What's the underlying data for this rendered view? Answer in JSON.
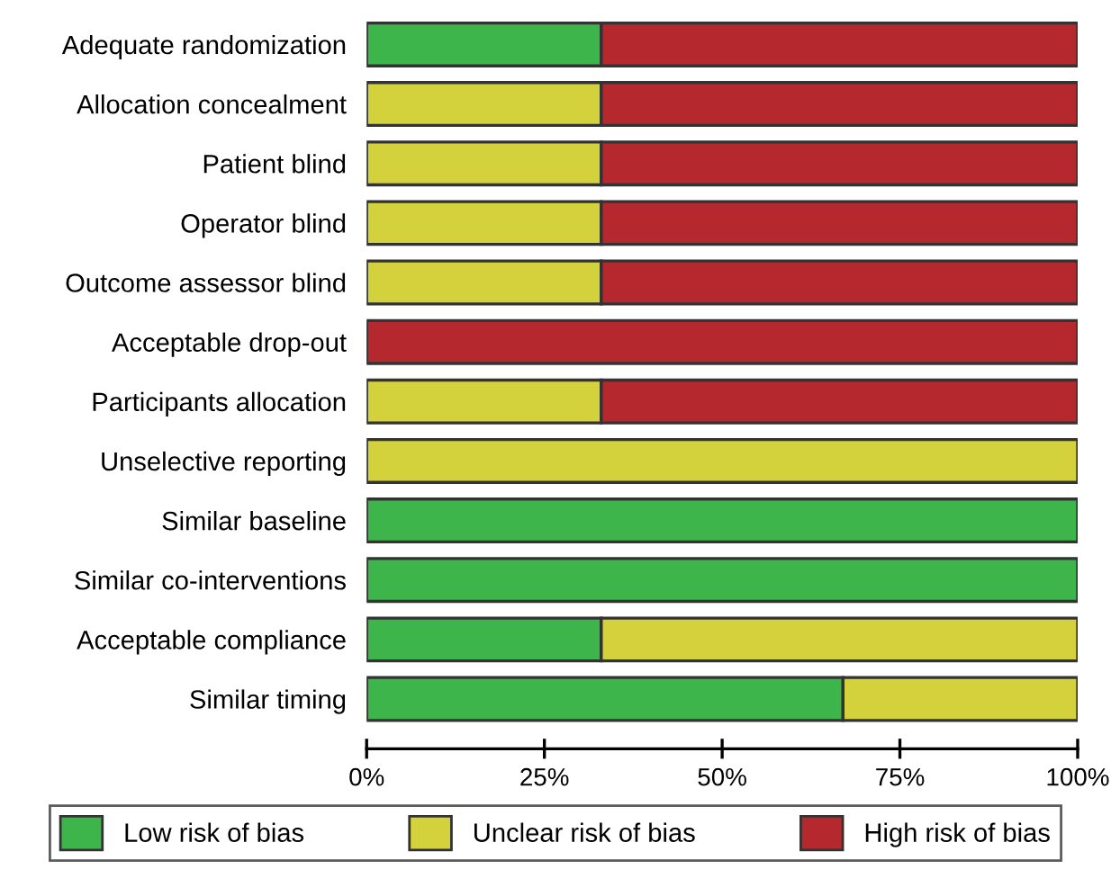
{
  "chart_data": {
    "type": "bar",
    "orientation": "horizontal",
    "stacked": true,
    "categories": [
      "Adequate randomization",
      "Allocation concealment",
      "Patient blind",
      "Operator blind",
      "Outcome assessor blind",
      "Acceptable drop-out",
      "Participants allocation",
      "Unselective reporting",
      "Similar baseline",
      "Similar co-interventions",
      "Acceptable compliance",
      "Similar timing"
    ],
    "series": [
      {
        "name": "Low risk of bias",
        "color": "#3db54a",
        "values": [
          33,
          0,
          0,
          0,
          0,
          0,
          0,
          0,
          100,
          100,
          33,
          67
        ]
      },
      {
        "name": "Unclear risk of bias",
        "color": "#d4d23c",
        "values": [
          0,
          33,
          33,
          33,
          33,
          0,
          33,
          100,
          0,
          0,
          67,
          33
        ]
      },
      {
        "name": "High risk of bias",
        "color": "#b5282e",
        "values": [
          67,
          67,
          67,
          67,
          67,
          100,
          67,
          0,
          0,
          0,
          0,
          0
        ]
      }
    ],
    "xlim": [
      0,
      100
    ],
    "xticks": [
      {
        "value": 0,
        "label": "0%"
      },
      {
        "value": 25,
        "label": "25%"
      },
      {
        "value": 50,
        "label": "50%"
      },
      {
        "value": 75,
        "label": "75%"
      },
      {
        "value": 100,
        "label": "100%"
      }
    ],
    "grid": false,
    "legend": "bottom"
  }
}
